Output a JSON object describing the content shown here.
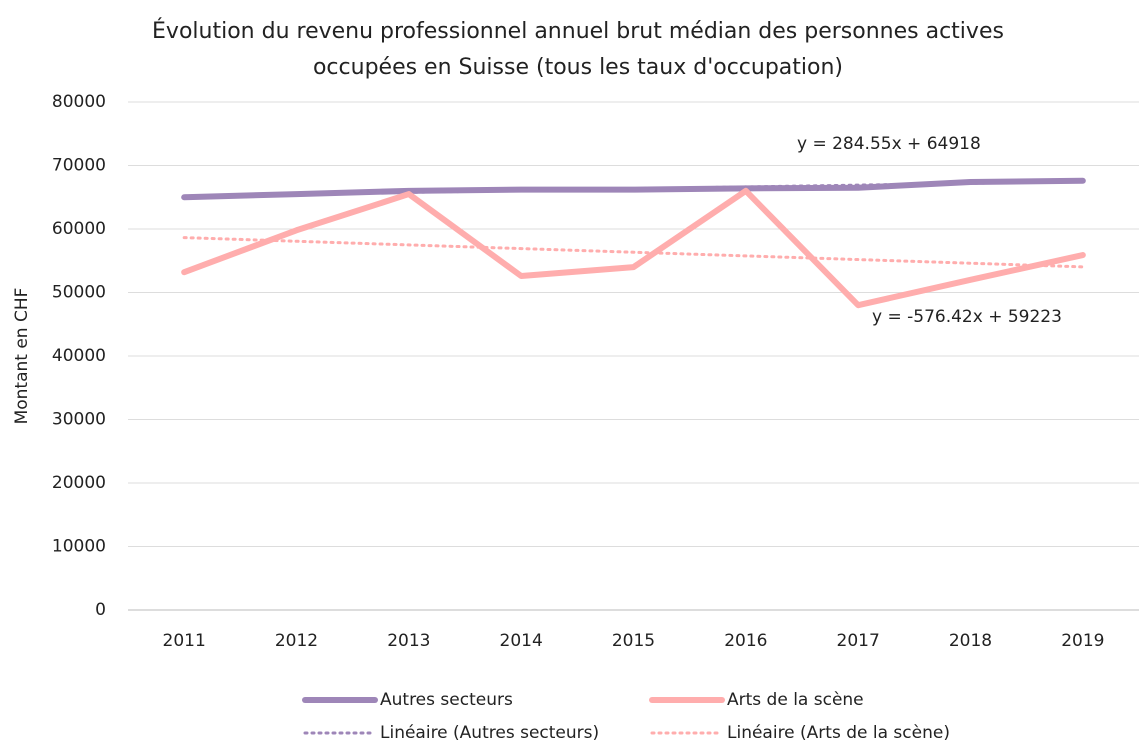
{
  "chart_data": {
    "type": "line",
    "title": [
      "Évolution du revenu professionnel annuel brut médian des personnes actives",
      "occupées en Suisse (tous les taux d'occupation)"
    ],
    "y_label": "Montant en CHF",
    "categories": [
      "2011",
      "2012",
      "2013",
      "2014",
      "2015",
      "2016",
      "2017",
      "2018",
      "2019"
    ],
    "series": [
      {
        "name": "Autres secteurs",
        "color": "#9e86b8",
        "style": "solid",
        "values": [
          65000,
          65500,
          66000,
          66200,
          66200,
          66400,
          66500,
          67400,
          67600
        ]
      },
      {
        "name": "Arts de la scène",
        "color": "#ffadad",
        "style": "solid",
        "values": [
          53200,
          59800,
          65500,
          52600,
          54000,
          66000,
          48000,
          52000,
          55900
        ]
      },
      {
        "name": "Linéaire (Autres secteurs)",
        "color": "#9e86b8",
        "style": "dotted",
        "values": [
          65203,
          65488,
          65772,
          66056,
          66341,
          66625,
          66910,
          67194,
          67479
        ]
      },
      {
        "name": "Linéaire (Arts de la scène)",
        "color": "#ffadad",
        "style": "dotted",
        "values": [
          58647,
          58070,
          57494,
          56917,
          56341,
          55765,
          55188,
          54612,
          54035
        ]
      }
    ],
    "annotations": [
      "y = 284.55x + 64918",
      "y = -576.42x + 59223"
    ],
    "ylim": [
      0,
      80000
    ],
    "yticks": [
      0,
      10000,
      20000,
      30000,
      40000,
      50000,
      60000,
      70000,
      80000
    ],
    "grid": true,
    "legend": "bottom"
  }
}
